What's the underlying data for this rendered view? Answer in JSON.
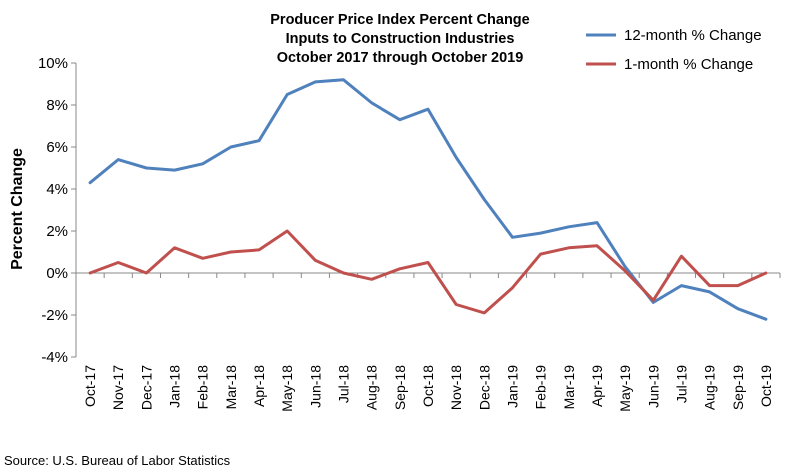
{
  "chart_data": {
    "type": "line",
    "title": [
      "Producer Price Index Percent Change",
      "Inputs to Construction Industries",
      "October 2017 through October 2019"
    ],
    "ylabel": "Percent Change",
    "xlabel": "",
    "ylim": [
      -4,
      10
    ],
    "yticks": [
      "-4%",
      "-2%",
      "0%",
      "2%",
      "4%",
      "6%",
      "8%",
      "10%"
    ],
    "grid": false,
    "legend_position": "top-right",
    "categories": [
      "Oct-17",
      "Nov-17",
      "Dec-17",
      "Jan-18",
      "Feb-18",
      "Mar-18",
      "Apr-18",
      "May-18",
      "Jun-18",
      "Jul-18",
      "Aug-18",
      "Sep-18",
      "Oct-18",
      "Nov-18",
      "Dec-18",
      "Jan-19",
      "Feb-19",
      "Mar-19",
      "Apr-19",
      "May-19",
      "Jun-19",
      "Jul-19",
      "Aug-19",
      "Sep-19",
      "Oct-19"
    ],
    "series": [
      {
        "name": "12-month % Change",
        "color": "#4f81bd",
        "values": [
          4.3,
          5.4,
          5.0,
          4.9,
          5.2,
          6.0,
          6.3,
          8.5,
          9.1,
          9.2,
          8.1,
          7.3,
          7.8,
          5.5,
          3.5,
          1.7,
          1.9,
          2.2,
          2.4,
          0.3,
          -1.4,
          -0.6,
          -0.9,
          -1.7,
          -2.2
        ]
      },
      {
        "name": "1-month % Change",
        "color": "#c0504d",
        "values": [
          0.0,
          0.5,
          0.0,
          1.2,
          0.7,
          1.0,
          1.1,
          2.0,
          0.6,
          0.0,
          -0.3,
          0.2,
          0.5,
          -1.5,
          -1.9,
          -0.7,
          0.9,
          1.2,
          1.3,
          0.1,
          -1.3,
          0.8,
          -0.6,
          -0.6,
          0.0
        ]
      }
    ]
  },
  "source": "Source: U.S. Bureau of Labor Statistics"
}
